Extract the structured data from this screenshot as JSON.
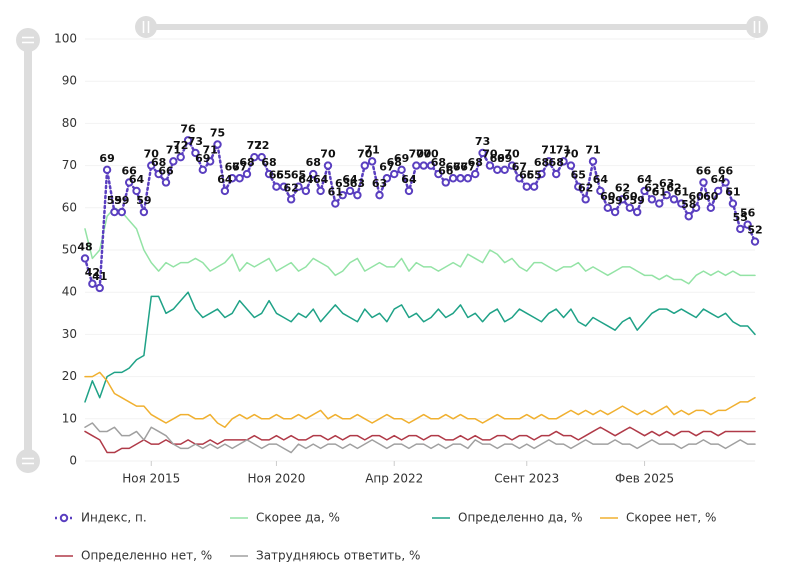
{
  "chart_data": {
    "type": "line",
    "categories": [
      null,
      null,
      null,
      null,
      null,
      null,
      null,
      null,
      null,
      "Ноя 2015",
      null,
      null,
      null,
      null,
      null,
      null,
      null,
      null,
      null,
      null,
      null,
      null,
      null,
      null,
      null,
      null,
      "Ноя 2020",
      null,
      null,
      null,
      null,
      null,
      null,
      null,
      null,
      null,
      null,
      null,
      null,
      null,
      null,
      null,
      "Апр 2022",
      null,
      null,
      null,
      null,
      null,
      null,
      null,
      null,
      null,
      null,
      null,
      null,
      null,
      null,
      null,
      null,
      null,
      "Сент 2023",
      null,
      null,
      null,
      null,
      null,
      null,
      null,
      null,
      null,
      null,
      null,
      null,
      null,
      null,
      null,
      "Фев 2025",
      null,
      null,
      null,
      null,
      null,
      null,
      null,
      null,
      null,
      null,
      null,
      null,
      null,
      null,
      null
    ],
    "series": [
      {
        "name": "Индекс, п.",
        "color": "#5a3fc0",
        "dotted": true,
        "markers": true,
        "data_labels": true,
        "values": [
          48,
          42,
          41,
          69,
          59,
          59,
          66,
          64,
          59,
          70,
          68,
          66,
          71,
          72,
          76,
          73,
          69,
          71,
          75,
          64,
          67,
          67,
          68,
          72,
          72,
          68,
          65,
          65,
          62,
          65,
          64,
          68,
          64,
          70,
          61,
          63,
          64,
          63,
          70,
          71,
          63,
          67,
          68,
          69,
          64,
          70,
          70,
          70,
          68,
          66,
          67,
          67,
          67,
          68,
          73,
          70,
          69,
          69,
          70,
          67,
          65,
          65,
          68,
          71,
          68,
          71,
          70,
          65,
          62,
          71,
          64,
          60,
          59,
          62,
          60,
          59,
          64,
          62,
          61,
          63,
          62,
          61,
          58,
          60,
          66,
          60,
          64,
          66,
          61,
          55,
          56,
          52
        ]
      },
      {
        "name": "Скорее да, %",
        "color": "#93e3a5",
        "values": [
          55,
          48,
          50,
          58,
          60,
          59,
          57,
          55,
          50,
          47,
          45,
          47,
          46,
          47,
          47,
          48,
          47,
          45,
          46,
          47,
          49,
          45,
          47,
          46,
          47,
          48,
          45,
          46,
          47,
          45,
          46,
          48,
          47,
          46,
          44,
          45,
          47,
          48,
          45,
          46,
          47,
          46,
          46,
          48,
          45,
          47,
          46,
          46,
          45,
          46,
          47,
          46,
          49,
          48,
          47,
          50,
          49,
          47,
          48,
          46,
          45,
          47,
          47,
          46,
          45,
          46,
          46,
          47,
          45,
          46,
          45,
          44,
          45,
          46,
          46,
          45,
          44,
          44,
          43,
          44,
          43,
          43,
          42,
          44,
          45,
          44,
          45,
          44,
          45,
          44,
          44,
          44
        ]
      },
      {
        "name": "Определенно да, %",
        "color": "#1fa287",
        "values": [
          14,
          19,
          15,
          20,
          21,
          21,
          22,
          24,
          25,
          39,
          39,
          35,
          36,
          38,
          40,
          36,
          34,
          35,
          36,
          34,
          35,
          38,
          36,
          34,
          35,
          38,
          35,
          34,
          33,
          35,
          34,
          36,
          33,
          35,
          37,
          35,
          34,
          33,
          36,
          34,
          35,
          33,
          36,
          37,
          34,
          35,
          33,
          34,
          36,
          34,
          35,
          37,
          34,
          35,
          33,
          35,
          36,
          33,
          34,
          36,
          35,
          34,
          33,
          35,
          36,
          34,
          36,
          33,
          32,
          34,
          33,
          32,
          31,
          33,
          34,
          31,
          33,
          35,
          36,
          36,
          35,
          36,
          35,
          34,
          36,
          35,
          34,
          35,
          33,
          32,
          32,
          30
        ]
      },
      {
        "name": "Скорее нет, %",
        "color": "#f0b030",
        "values": [
          20,
          20,
          21,
          19,
          16,
          15,
          14,
          13,
          13,
          11,
          10,
          9,
          10,
          11,
          11,
          10,
          10,
          11,
          9,
          8,
          10,
          11,
          10,
          11,
          10,
          10,
          11,
          10,
          10,
          11,
          10,
          11,
          12,
          10,
          11,
          10,
          10,
          11,
          10,
          9,
          10,
          11,
          10,
          10,
          9,
          10,
          11,
          10,
          10,
          11,
          10,
          11,
          10,
          10,
          9,
          10,
          11,
          10,
          10,
          10,
          11,
          10,
          11,
          10,
          10,
          11,
          12,
          11,
          12,
          11,
          12,
          11,
          12,
          13,
          12,
          11,
          12,
          11,
          12,
          13,
          11,
          12,
          11,
          12,
          12,
          11,
          12,
          12,
          13,
          14,
          14,
          15
        ]
      },
      {
        "name": "Определенно нет, %",
        "color": "#b03a48",
        "values": [
          7,
          6,
          5,
          2,
          2,
          3,
          3,
          4,
          5,
          4,
          4,
          5,
          4,
          4,
          5,
          4,
          4,
          5,
          4,
          5,
          5,
          5,
          5,
          6,
          5,
          5,
          6,
          5,
          6,
          5,
          5,
          6,
          6,
          5,
          6,
          5,
          6,
          6,
          5,
          6,
          6,
          5,
          6,
          5,
          6,
          6,
          5,
          6,
          6,
          5,
          5,
          6,
          5,
          6,
          5,
          5,
          6,
          6,
          5,
          6,
          6,
          5,
          6,
          6,
          7,
          6,
          6,
          5,
          6,
          7,
          8,
          7,
          6,
          7,
          8,
          7,
          6,
          7,
          6,
          7,
          6,
          7,
          7,
          6,
          7,
          7,
          6,
          7,
          7,
          7,
          7,
          7
        ]
      },
      {
        "name": "Затрудняюсь ответить, %",
        "color": "#a0a0a0",
        "values": [
          8,
          9,
          7,
          7,
          8,
          6,
          6,
          7,
          5,
          8,
          7,
          6,
          4,
          3,
          3,
          4,
          3,
          4,
          3,
          4,
          3,
          4,
          5,
          4,
          3,
          4,
          4,
          3,
          2,
          4,
          3,
          4,
          3,
          4,
          4,
          3,
          4,
          3,
          4,
          5,
          4,
          3,
          4,
          4,
          3,
          4,
          4,
          3,
          4,
          3,
          4,
          4,
          3,
          5,
          4,
          4,
          3,
          4,
          4,
          3,
          4,
          3,
          4,
          5,
          4,
          4,
          3,
          4,
          5,
          4,
          4,
          4,
          5,
          4,
          4,
          3,
          4,
          5,
          4,
          4,
          4,
          3,
          4,
          4,
          5,
          4,
          4,
          3,
          4,
          5,
          4,
          4
        ]
      }
    ],
    "ylim": [
      0,
      100
    ],
    "yticks": [
      0,
      10,
      20,
      30,
      40,
      50,
      60,
      70,
      80,
      90,
      100
    ],
    "grid": true
  }
}
